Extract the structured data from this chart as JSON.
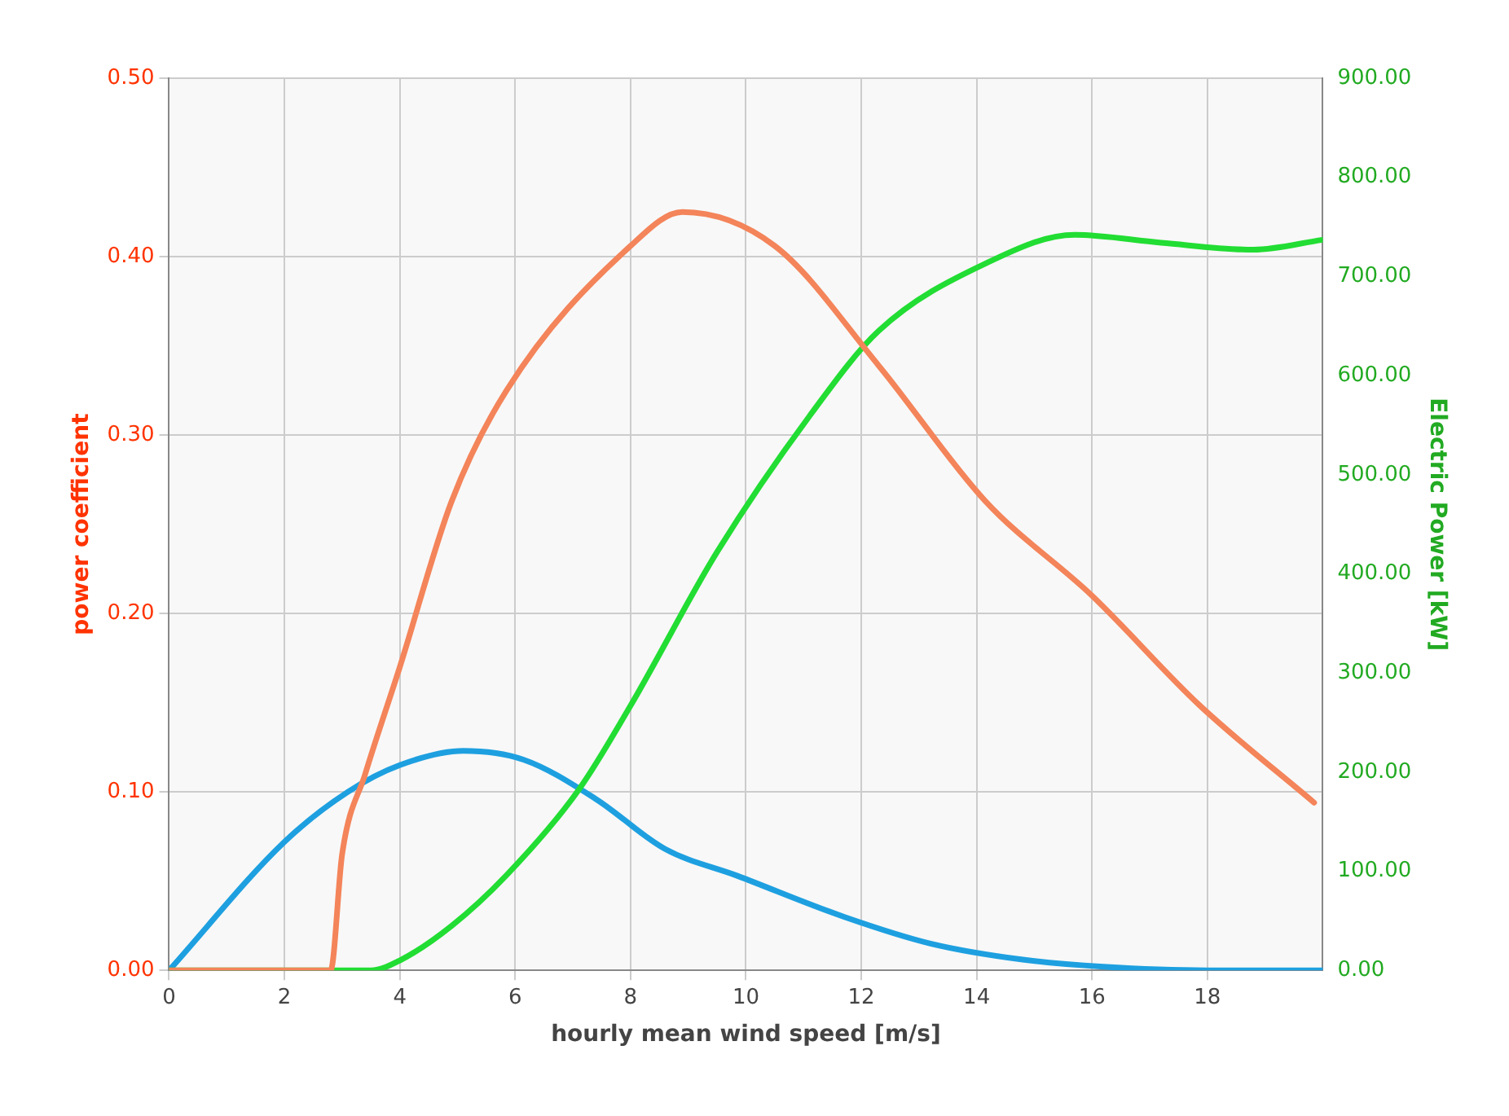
{
  "chart_data": {
    "type": "line",
    "xlabel": "hourly mean wind speed [m/s]",
    "ylabel": "power coefficient",
    "y2label": "Electric Power [kW]",
    "xlim": [
      0,
      20
    ],
    "xticks": [
      0,
      2,
      4,
      6,
      8,
      10,
      12,
      14,
      16,
      18
    ],
    "ylim": [
      0,
      0.5
    ],
    "yticks": [
      {
        "value": 0,
        "label": "0.00"
      },
      {
        "value": 0.1,
        "label": "0.10"
      },
      {
        "value": 0.2,
        "label": "0.20"
      },
      {
        "value": 0.3,
        "label": "0.30"
      },
      {
        "value": 0.4,
        "label": "0.40"
      },
      {
        "value": 0.5,
        "label": "0.50"
      }
    ],
    "y2lim": [
      0,
      900
    ],
    "y2ticks": [
      {
        "value": 0,
        "label": "0.00"
      },
      {
        "value": 100,
        "label": "100.00"
      },
      {
        "value": 200,
        "label": "200.00"
      },
      {
        "value": 300,
        "label": "300.00"
      },
      {
        "value": 400,
        "label": "400.00"
      },
      {
        "value": 500,
        "label": "500.00"
      },
      {
        "value": 600,
        "label": "600.00"
      },
      {
        "value": 700,
        "label": "700.00"
      },
      {
        "value": 800,
        "label": "800.00"
      },
      {
        "value": 900,
        "label": "900.00"
      }
    ],
    "grid": true,
    "marker": "none",
    "line_style": "solid",
    "series": [
      {
        "color": "#f4845a",
        "x": [
          0,
          2.8,
          3.0,
          3.4,
          4,
          4.9,
          5.85,
          8.0,
          8.9,
          10.5,
          12.3,
          14.15,
          16,
          17.85,
          19.85
        ],
        "values": [
          0,
          0,
          0.065,
          0.11,
          0.17,
          0.263,
          0.325,
          0.406,
          0.425,
          0.406,
          0.339,
          0.263,
          0.21,
          0.149,
          0.094
        ]
      },
      {
        "color": "#22dd33",
        "axis": "y2",
        "x": [
          0,
          3.5,
          4,
          4.9,
          5.85,
          7.1,
          8,
          9.5,
          11.1,
          12.3,
          14.15,
          15.7,
          17.2,
          18.8,
          20
        ],
        "values": [
          0,
          0,
          10,
          45,
          96,
          182,
          267,
          422,
          559,
          645,
          713,
          742,
          734,
          727,
          737
        ]
      },
      {
        "color": "#1ea0e0",
        "x": [
          0,
          2,
          3.1,
          4,
          5.1,
          6.15,
          7.4,
          8.6,
          9.85,
          11.7,
          13.2,
          14.8,
          16.2,
          18,
          20
        ],
        "values": [
          0,
          0.072,
          0.1,
          0.115,
          0.123,
          0.118,
          0.096,
          0.068,
          0.053,
          0.03,
          0.015,
          0.006,
          0.002,
          0,
          0
        ]
      }
    ]
  }
}
